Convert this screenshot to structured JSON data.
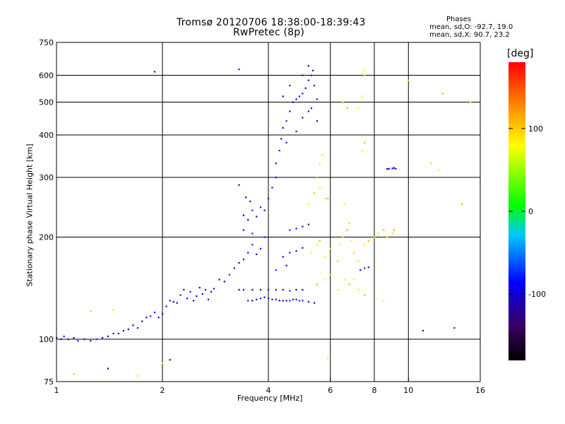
{
  "header": {
    "title": "Tromsø 20120706 18:38:00-18:39:43",
    "subtitle": "RwPretec (8p)",
    "stats_heading": "Phases",
    "stats_o": "mean, sd,O: -92.7, 19.0",
    "stats_x": "mean, sd,X:  90.7, 23.2"
  },
  "chart_data": {
    "type": "scatter",
    "title": "Tromsø 20120706 18:38:00-18:39:43",
    "subtitle": "RwPretec (8p)",
    "xlabel": "Frequency [MHz]",
    "ylabel": "Stationary phase Virtual Height [km]",
    "x_scale": "log",
    "y_scale": "log",
    "xlim": [
      1,
      16
    ],
    "ylim": [
      75,
      750
    ],
    "x_ticks": [
      1,
      2,
      4,
      6,
      8,
      10,
      16
    ],
    "x_tick_labels": [
      "1",
      "2",
      "4",
      "6",
      "8",
      "10",
      "16"
    ],
    "y_ticks": [
      75,
      100,
      200,
      300,
      400,
      500,
      600,
      750
    ],
    "y_tick_labels": [
      "75",
      "100",
      "200",
      "300",
      "400",
      "500",
      "600",
      "750"
    ],
    "x_gridlines": [
      2,
      4,
      6,
      8,
      10
    ],
    "y_gridlines": [
      100,
      200,
      300,
      400,
      500,
      600
    ],
    "grid": true,
    "color_variable": "phase",
    "colorbar": {
      "label": "[deg]",
      "range": [
        -180,
        180
      ],
      "ticks": [
        100,
        0,
        -100
      ],
      "tick_labels": [
        "100",
        "0",
        "-100"
      ],
      "colors": [
        "#000000",
        "#3b0066",
        "#0000ff",
        "#00c8ff",
        "#00ff00",
        "#ffff00",
        "#ff8c00",
        "#ff0000"
      ]
    },
    "series": [
      {
        "name": "O",
        "mean_phase": -92.7,
        "sd_phase": 19.0,
        "points": [
          [
            1.0,
            101
          ],
          [
            1.03,
            100
          ],
          [
            1.05,
            102
          ],
          [
            1.08,
            100
          ],
          [
            1.12,
            101
          ],
          [
            1.15,
            99
          ],
          [
            1.2,
            100
          ],
          [
            1.25,
            99
          ],
          [
            1.3,
            100
          ],
          [
            1.35,
            101
          ],
          [
            1.4,
            102
          ],
          [
            1.45,
            104
          ],
          [
            1.5,
            104
          ],
          [
            1.55,
            106
          ],
          [
            1.6,
            107
          ],
          [
            1.65,
            110
          ],
          [
            1.7,
            108
          ],
          [
            1.75,
            113
          ],
          [
            1.8,
            116
          ],
          [
            1.85,
            117
          ],
          [
            1.9,
            120
          ],
          [
            1.95,
            116
          ],
          [
            2.0,
            119
          ],
          [
            2.05,
            125
          ],
          [
            2.1,
            130
          ],
          [
            2.15,
            129
          ],
          [
            2.2,
            128
          ],
          [
            2.25,
            135
          ],
          [
            2.3,
            140
          ],
          [
            2.35,
            132
          ],
          [
            2.4,
            138
          ],
          [
            2.45,
            130
          ],
          [
            2.5,
            134
          ],
          [
            2.55,
            142
          ],
          [
            2.6,
            136
          ],
          [
            2.65,
            140
          ],
          [
            2.7,
            131
          ],
          [
            2.75,
            138
          ],
          [
            2.8,
            141
          ],
          [
            2.9,
            150
          ],
          [
            3.0,
            148
          ],
          [
            3.1,
            155
          ],
          [
            3.2,
            162
          ],
          [
            3.3,
            168
          ],
          [
            3.4,
            172
          ],
          [
            3.5,
            180
          ],
          [
            3.6,
            190
          ],
          [
            3.7,
            178
          ],
          [
            3.8,
            185
          ],
          [
            3.9,
            200
          ],
          [
            3.4,
            210
          ],
          [
            3.5,
            225
          ],
          [
            3.6,
            240
          ],
          [
            3.55,
            255
          ],
          [
            3.45,
            262
          ],
          [
            3.3,
            285
          ],
          [
            3.4,
            232
          ],
          [
            3.6,
            205
          ],
          [
            3.7,
            230
          ],
          [
            3.8,
            245
          ],
          [
            3.5,
            130
          ],
          [
            3.6,
            130
          ],
          [
            3.7,
            131
          ],
          [
            3.8,
            132
          ],
          [
            3.9,
            133
          ],
          [
            4.0,
            132
          ],
          [
            4.1,
            131
          ],
          [
            4.2,
            131
          ],
          [
            4.3,
            130
          ],
          [
            4.4,
            130
          ],
          [
            4.5,
            130
          ],
          [
            4.6,
            130
          ],
          [
            4.7,
            131
          ],
          [
            4.8,
            131
          ],
          [
            4.9,
            130
          ],
          [
            5.0,
            130
          ],
          [
            5.2,
            129
          ],
          [
            5.4,
            128
          ],
          [
            3.3,
            140
          ],
          [
            3.4,
            140
          ],
          [
            3.6,
            140
          ],
          [
            3.8,
            140
          ],
          [
            4.0,
            140
          ],
          [
            4.2,
            140
          ],
          [
            4.4,
            140
          ],
          [
            4.6,
            139
          ],
          [
            4.8,
            140
          ],
          [
            5.0,
            140
          ],
          [
            3.9,
            240
          ],
          [
            4.0,
            260
          ],
          [
            4.1,
            280
          ],
          [
            4.2,
            300
          ],
          [
            4.2,
            330
          ],
          [
            4.3,
            360
          ],
          [
            4.35,
            390
          ],
          [
            4.4,
            420
          ],
          [
            4.5,
            440
          ],
          [
            4.6,
            470
          ],
          [
            4.7,
            500
          ],
          [
            4.8,
            510
          ],
          [
            4.9,
            520
          ],
          [
            5.0,
            530
          ],
          [
            5.1,
            550
          ],
          [
            5.2,
            580
          ],
          [
            5.3,
            600
          ],
          [
            5.35,
            620
          ],
          [
            5.4,
            560
          ],
          [
            5.5,
            510
          ],
          [
            4.5,
            380
          ],
          [
            4.8,
            410
          ],
          [
            5.0,
            450
          ],
          [
            5.2,
            470
          ],
          [
            5.3,
            480
          ],
          [
            5.5,
            440
          ],
          [
            4.4,
            520
          ],
          [
            4.6,
            560
          ],
          [
            5.0,
            600
          ],
          [
            5.2,
            640
          ],
          [
            4.6,
            210
          ],
          [
            4.8,
            212
          ],
          [
            5.0,
            215
          ],
          [
            5.2,
            218
          ],
          [
            4.4,
            175
          ],
          [
            4.6,
            180
          ],
          [
            4.8,
            182
          ],
          [
            5.0,
            186
          ],
          [
            4.2,
            160
          ],
          [
            4.5,
            165
          ],
          [
            7.3,
            160
          ],
          [
            7.5,
            162
          ],
          [
            7.7,
            163
          ],
          [
            8.7,
            318
          ],
          [
            8.8,
            318
          ],
          [
            9.0,
            319
          ],
          [
            9.2,
            318
          ],
          [
            9.1,
            320
          ],
          [
            1.9,
            615
          ],
          [
            3.3,
            625
          ],
          [
            1.4,
            82
          ],
          [
            2.1,
            87
          ],
          [
            13.5,
            108
          ],
          [
            11.0,
            106
          ]
        ]
      },
      {
        "name": "X",
        "mean_phase": 90.7,
        "sd_phase": 23.2,
        "points": [
          [
            5.3,
            180
          ],
          [
            5.5,
            190
          ],
          [
            5.6,
            195
          ],
          [
            5.8,
            175
          ],
          [
            6.0,
            185
          ],
          [
            6.3,
            170
          ],
          [
            6.4,
            190
          ],
          [
            6.5,
            200
          ],
          [
            6.7,
            210
          ],
          [
            6.9,
            195
          ],
          [
            7.0,
            180
          ],
          [
            7.2,
            170
          ],
          [
            7.5,
            190
          ],
          [
            7.7,
            195
          ],
          [
            8.0,
            200
          ],
          [
            8.2,
            205
          ],
          [
            8.5,
            210
          ],
          [
            8.7,
            200
          ],
          [
            9.0,
            205
          ],
          [
            9.1,
            210
          ],
          [
            5.2,
            250
          ],
          [
            5.4,
            270
          ],
          [
            5.6,
            280
          ],
          [
            5.8,
            260
          ],
          [
            5.5,
            300
          ],
          [
            5.6,
            330
          ],
          [
            5.7,
            350
          ],
          [
            5.9,
            260
          ],
          [
            6.6,
            250
          ],
          [
            6.8,
            220
          ],
          [
            5.5,
            145
          ],
          [
            5.8,
            150
          ],
          [
            6.0,
            155
          ],
          [
            6.3,
            140
          ],
          [
            6.6,
            150
          ],
          [
            6.8,
            145
          ],
          [
            7.0,
            150
          ],
          [
            7.2,
            140
          ],
          [
            7.5,
            135
          ],
          [
            8.5,
            130
          ],
          [
            6.5,
            500
          ],
          [
            6.7,
            480
          ],
          [
            7.2,
            480
          ],
          [
            7.5,
            600
          ],
          [
            7.5,
            620
          ],
          [
            7.4,
            520
          ],
          [
            7.5,
            380
          ],
          [
            7.4,
            360
          ],
          [
            10.0,
            580
          ],
          [
            12.5,
            530
          ],
          [
            12.2,
            315
          ],
          [
            11.6,
            330
          ],
          [
            14.2,
            250
          ],
          [
            15.0,
            500
          ],
          [
            1.25,
            121
          ],
          [
            1.45,
            122
          ],
          [
            1.7,
            78
          ],
          [
            1.12,
            79
          ],
          [
            5.9,
            88
          ],
          [
            2.0,
            85
          ]
        ]
      }
    ]
  }
}
